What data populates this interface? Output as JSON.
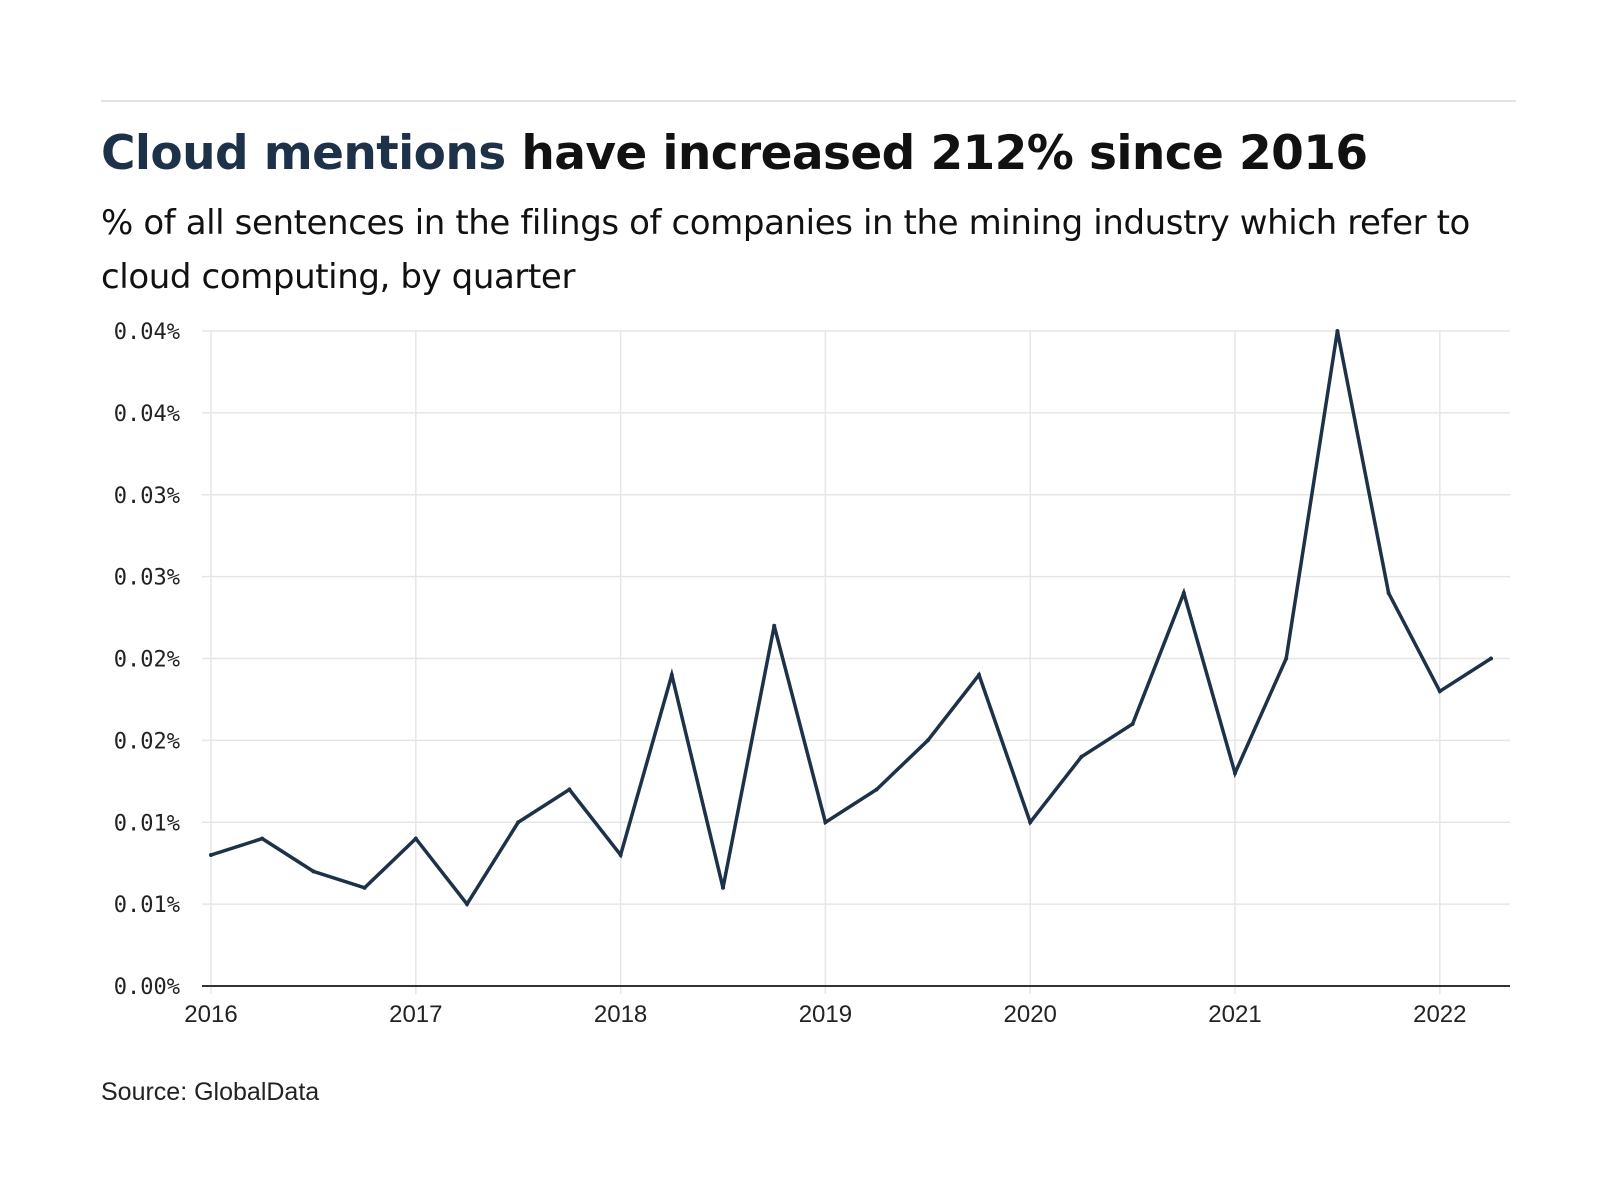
{
  "header": {
    "title_highlight": "Cloud mentions",
    "title_rest": " have increased 212% since 2016",
    "subtitle": "% of all sentences in the filings of companies in the mining industry which refer to cloud computing, by quarter"
  },
  "footer": {
    "source": "Source: GlobalData"
  },
  "colors": {
    "line": "#1d3249",
    "highlight": "#1d3249",
    "grid": "#e6e6e6",
    "axis": "#333333"
  },
  "chart_data": {
    "type": "line",
    "title": "",
    "xlabel": "",
    "ylabel": "",
    "grid": true,
    "legend": "none",
    "x_ticks": [
      "2016",
      "2017",
      "2018",
      "2019",
      "2020",
      "2021",
      "2022"
    ],
    "y_tick_values": [
      0,
      0.005,
      0.01,
      0.015,
      0.02,
      0.025,
      0.03,
      0.035,
      0.04
    ],
    "y_tick_labels": [
      "0.00%",
      "0.01%",
      "0.01%",
      "0.02%",
      "0.02%",
      "0.03%",
      "0.03%",
      "0.04%",
      "0.04%"
    ],
    "ylim": [
      0,
      0.04
    ],
    "xlim": [
      "2016 Q1",
      "2022 Q2"
    ],
    "series": [
      {
        "x": [
          "2016 Q1",
          "2016 Q2",
          "2016 Q3",
          "2016 Q4",
          "2017 Q1",
          "2017 Q2",
          "2017 Q3",
          "2017 Q4",
          "2018 Q1",
          "2018 Q2",
          "2018 Q3",
          "2018 Q4",
          "2019 Q1",
          "2019 Q2",
          "2019 Q3",
          "2019 Q4",
          "2020 Q1",
          "2020 Q2",
          "2020 Q3",
          "2020 Q4",
          "2021 Q1",
          "2021 Q2",
          "2021 Q3",
          "2021 Q4",
          "2022 Q1",
          "2022 Q2"
        ],
        "values": [
          0.008,
          0.009,
          0.007,
          0.006,
          0.009,
          0.005,
          0.01,
          0.012,
          0.008,
          0.019,
          0.006,
          0.022,
          0.01,
          0.012,
          0.015,
          0.019,
          0.01,
          0.014,
          0.016,
          0.024,
          0.013,
          0.02,
          0.04,
          0.024,
          0.018,
          0.02
        ]
      }
    ]
  }
}
